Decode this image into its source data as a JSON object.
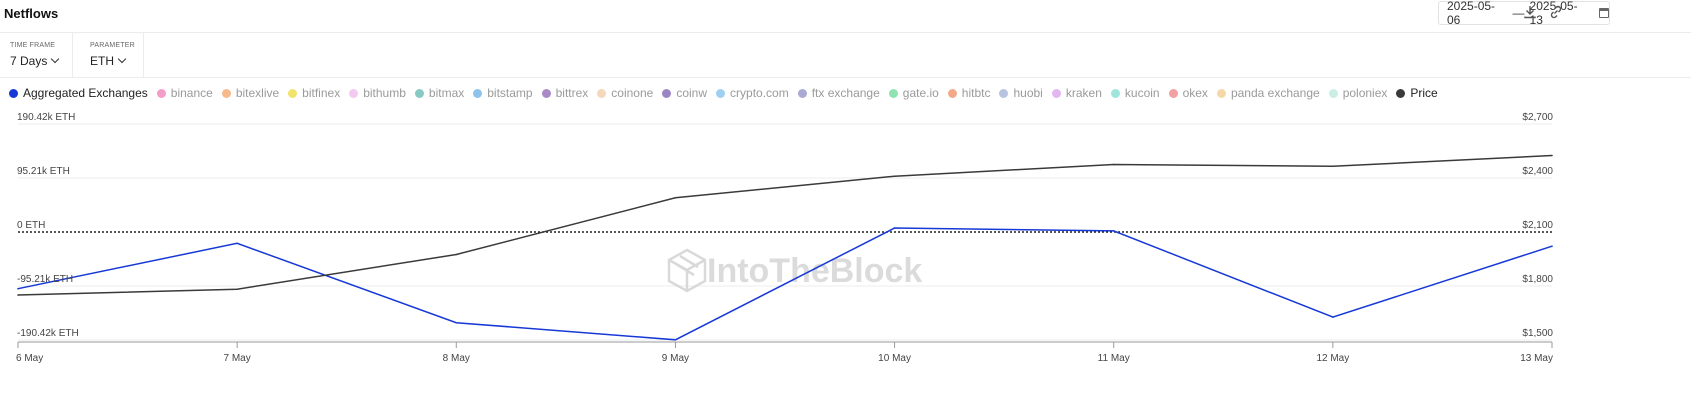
{
  "header": {
    "title": "Netflows",
    "date_from": "2025-05-06",
    "date_sep": "—",
    "date_to": "2025-05-13"
  },
  "controls": {
    "time_frame_label": "TIME FRAME",
    "time_frame_value": "7 Days",
    "parameter_label": "PARAMETER",
    "parameter_value": "ETH"
  },
  "legend": [
    {
      "label": "Aggregated Exchanges",
      "color": "#1638d6",
      "active": true
    },
    {
      "label": "binance",
      "color": "#f29ec8",
      "active": false
    },
    {
      "label": "bitexlive",
      "color": "#f6b98a",
      "active": false
    },
    {
      "label": "bitfinex",
      "color": "#f1e36b",
      "active": false
    },
    {
      "label": "bithumb",
      "color": "#f3c9ef",
      "active": false
    },
    {
      "label": "bitmax",
      "color": "#88c9c4",
      "active": false
    },
    {
      "label": "bitstamp",
      "color": "#8ec3ec",
      "active": false
    },
    {
      "label": "bittrex",
      "color": "#a98ac6",
      "active": false
    },
    {
      "label": "coinone",
      "color": "#f5d7b9",
      "active": false
    },
    {
      "label": "coinw",
      "color": "#9b86c4",
      "active": false
    },
    {
      "label": "crypto.com",
      "color": "#9fd0f2",
      "active": false
    },
    {
      "label": "ftx exchange",
      "color": "#a9a9d4",
      "active": false
    },
    {
      "label": "gate.io",
      "color": "#8fe3b0",
      "active": false
    },
    {
      "label": "hitbtc",
      "color": "#f4a88a",
      "active": false
    },
    {
      "label": "huobi",
      "color": "#b8c3e0",
      "active": false
    },
    {
      "label": "kraken",
      "color": "#e2b6f0",
      "active": false
    },
    {
      "label": "kucoin",
      "color": "#9ee5dc",
      "active": false
    },
    {
      "label": "okex",
      "color": "#f2a0a0",
      "active": false
    },
    {
      "label": "panda exchange",
      "color": "#f6d8a8",
      "active": false
    },
    {
      "label": "poloniex",
      "color": "#c8eee6",
      "active": false
    },
    {
      "label": "Price",
      "color": "#3a3a3a",
      "active": true
    }
  ],
  "watermark": "IntoTheBlock",
  "chart_data": {
    "type": "line",
    "x": [
      "6 May",
      "7 May",
      "8 May",
      "9 May",
      "10 May",
      "11 May",
      "12 May",
      "13 May"
    ],
    "y_left_ticks": [
      "190.42k ETH",
      "95.21k ETH",
      "0 ETH",
      "-95.21k ETH",
      "-190.42k ETH"
    ],
    "y_left_tick_values": [
      190420,
      95210,
      0,
      -95210,
      -190420
    ],
    "ylim_left": [
      -190420,
      190420
    ],
    "y_right_ticks": [
      "$2,700",
      "$2,400",
      "$2,100",
      "$1,800",
      "$1,500"
    ],
    "y_right_tick_values": [
      2700,
      2400,
      2100,
      1800,
      1500
    ],
    "ylim_right": [
      1500,
      2700
    ],
    "series": [
      {
        "name": "Aggregated Exchanges",
        "axis": "left",
        "color": "#1638d6",
        "values": [
          -100000,
          -20000,
          -160000,
          -190000,
          7000,
          2000,
          -150000,
          -25000
        ]
      },
      {
        "name": "Price",
        "axis": "right",
        "color": "#3a3a3a",
        "values": [
          1750,
          1782,
          1975,
          2290,
          2410,
          2475,
          2465,
          2525
        ]
      }
    ],
    "zero_line": true,
    "grid": true,
    "legend_position": "top"
  }
}
